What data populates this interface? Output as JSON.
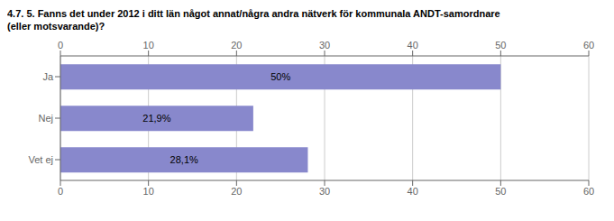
{
  "chart_data": {
    "type": "bar",
    "orientation": "horizontal",
    "title": "4.7. 5. Fanns det under 2012 i ditt län något annat/några andra nätverk för kommunala ANDT-samordnare",
    "subtitle": "(eller motsvarande)?",
    "categories": [
      "Vet ej",
      "Nej",
      "Ja"
    ],
    "values": [
      28.1,
      21.9,
      50.0
    ],
    "value_labels": [
      "28,1%",
      "21,9%",
      "50%"
    ],
    "color": "#8888cc",
    "xlim": [
      0,
      60
    ],
    "xticks": [
      0,
      10,
      20,
      30,
      40,
      50,
      60
    ],
    "grid": true,
    "data_labels": true
  }
}
